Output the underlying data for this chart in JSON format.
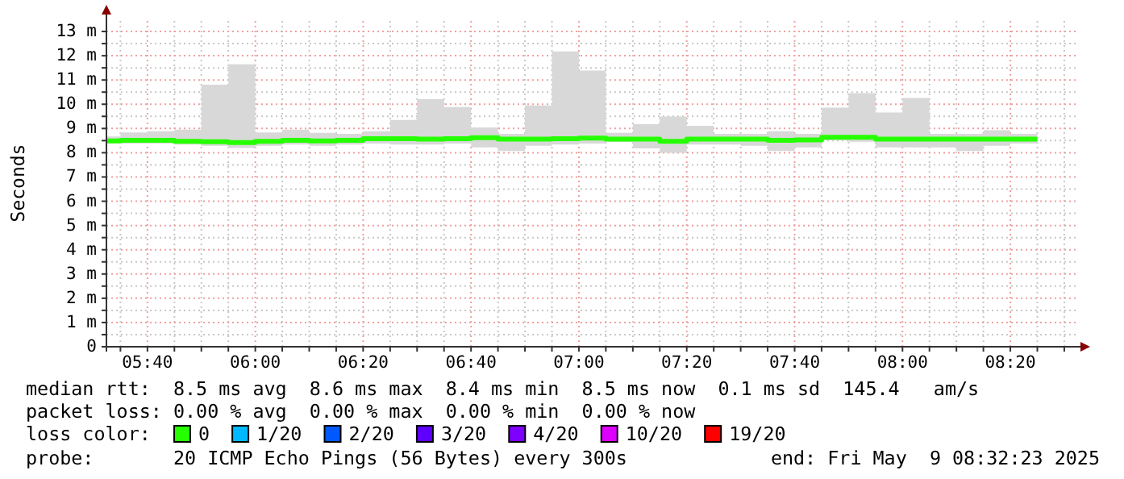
{
  "chart_data": {
    "type": "step",
    "ylabel": "Seconds",
    "legend_title": "loss color:",
    "legend": "bottom",
    "grid": true,
    "xlim": [
      5.54,
      8.54
    ],
    "ylim": [
      0,
      13.5
    ],
    "xticks": [
      {
        "value": 5.5833,
        "label": null
      },
      {
        "value": 5.6667,
        "label": "05:40"
      },
      {
        "value": 5.75,
        "label": null
      },
      {
        "value": 5.8333,
        "label": null
      },
      {
        "value": 5.9167,
        "label": null
      },
      {
        "value": 6,
        "label": "06:00"
      },
      {
        "value": 6.0833,
        "label": null
      },
      {
        "value": 6.1667,
        "label": null
      },
      {
        "value": 6.25,
        "label": null
      },
      {
        "value": 6.3333,
        "label": "06:20"
      },
      {
        "value": 6.4167,
        "label": null
      },
      {
        "value": 6.5,
        "label": null
      },
      {
        "value": 6.5833,
        "label": null
      },
      {
        "value": 6.6667,
        "label": "06:40"
      },
      {
        "value": 6.75,
        "label": null
      },
      {
        "value": 6.8333,
        "label": null
      },
      {
        "value": 6.9167,
        "label": null
      },
      {
        "value": 7,
        "label": "07:00"
      },
      {
        "value": 7.0833,
        "label": null
      },
      {
        "value": 7.1667,
        "label": null
      },
      {
        "value": 7.25,
        "label": null
      },
      {
        "value": 7.3333,
        "label": "07:20"
      },
      {
        "value": 7.4167,
        "label": null
      },
      {
        "value": 7.5,
        "label": null
      },
      {
        "value": 7.5833,
        "label": null
      },
      {
        "value": 7.6667,
        "label": "07:40"
      },
      {
        "value": 7.75,
        "label": null
      },
      {
        "value": 7.8333,
        "label": null
      },
      {
        "value": 7.9167,
        "label": null
      },
      {
        "value": 8,
        "label": "08:00"
      },
      {
        "value": 8.0833,
        "label": null
      },
      {
        "value": 8.1667,
        "label": null
      },
      {
        "value": 8.25,
        "label": null
      },
      {
        "value": 8.3333,
        "label": "08:20"
      },
      {
        "value": 8.4167,
        "label": null
      },
      {
        "value": 8.5,
        "label": null
      }
    ],
    "yticks": [
      {
        "value": 0,
        "label": "0"
      },
      {
        "value": 0.5,
        "label": null
      },
      {
        "value": 1,
        "label": "1 m"
      },
      {
        "value": 1.5,
        "label": null
      },
      {
        "value": 2,
        "label": "2 m"
      },
      {
        "value": 2.5,
        "label": null
      },
      {
        "value": 3,
        "label": "3 m"
      },
      {
        "value": 3.5,
        "label": null
      },
      {
        "value": 4,
        "label": "4 m"
      },
      {
        "value": 4.5,
        "label": null
      },
      {
        "value": 5,
        "label": "5 m"
      },
      {
        "value": 5.5,
        "label": null
      },
      {
        "value": 6,
        "label": "6 m"
      },
      {
        "value": 6.5,
        "label": null
      },
      {
        "value": 7,
        "label": "7 m"
      },
      {
        "value": 7.5,
        "label": null
      },
      {
        "value": 8,
        "label": "8 m"
      },
      {
        "value": 8.5,
        "label": null
      },
      {
        "value": 9,
        "label": "9 m"
      },
      {
        "value": 9.5,
        "label": null
      },
      {
        "value": 10,
        "label": "10 m"
      },
      {
        "value": 10.5,
        "label": null
      },
      {
        "value": 11,
        "label": "11 m"
      },
      {
        "value": 11.5,
        "label": null
      },
      {
        "value": 12,
        "label": "12 m"
      },
      {
        "value": 12.5,
        "label": null
      },
      {
        "value": 13,
        "label": "13 m"
      }
    ],
    "x": [
      5.54,
      5.5833,
      5.6667,
      5.75,
      5.8333,
      5.9167,
      6,
      6.0833,
      6.1667,
      6.25,
      6.3333,
      6.4167,
      6.5,
      6.5833,
      6.6667,
      6.75,
      6.8333,
      6.9167,
      7,
      7.0833,
      7.1667,
      7.25,
      7.3333,
      7.4167,
      7.5,
      7.5833,
      7.6667,
      7.75,
      7.8333,
      7.9167,
      8,
      8.0833,
      8.1667,
      8.25,
      8.3333,
      8.4167
    ],
    "series": [
      {
        "name": "0",
        "color": "#26ff00",
        "values": [
          8.49,
          8.51,
          8.51,
          8.47,
          8.45,
          8.42,
          8.47,
          8.51,
          8.49,
          8.51,
          8.58,
          8.58,
          8.56,
          8.58,
          8.62,
          8.56,
          8.56,
          8.58,
          8.6,
          8.56,
          8.56,
          8.47,
          8.56,
          8.56,
          8.56,
          8.51,
          8.53,
          8.64,
          8.64,
          8.56,
          8.56,
          8.56,
          8.56,
          8.56,
          8.56,
          8.56
        ],
        "lower": [
          8.38,
          8.38,
          8.38,
          8.34,
          8.29,
          8.2,
          8.29,
          8.34,
          8.29,
          8.34,
          8.38,
          8.34,
          8.34,
          8.38,
          8.22,
          8.07,
          8.29,
          8.34,
          8.38,
          8.45,
          8.18,
          8.0,
          8.34,
          8.34,
          8.29,
          8.07,
          8.22,
          8.51,
          8.45,
          8.22,
          8.22,
          8.22,
          8.07,
          8.29,
          8.38,
          8.38
        ],
        "upper": [
          8.67,
          8.84,
          8.89,
          8.95,
          10.81,
          11.65,
          8.84,
          8.95,
          8.82,
          8.78,
          8.89,
          9.35,
          10.21,
          9.88,
          9.04,
          8.78,
          9.95,
          12.18,
          11.39,
          8.82,
          9.18,
          9.49,
          9.11,
          8.78,
          8.78,
          8.89,
          8.78,
          9.86,
          10.46,
          9.66,
          10.26,
          8.78,
          8.78,
          8.93,
          8.78,
          8.78
        ]
      },
      {
        "name": "1/20",
        "color": "#00b8ff",
        "values": [
          null,
          null,
          null,
          null,
          null,
          null,
          null,
          null,
          null,
          null,
          null,
          null,
          null,
          null,
          null,
          null,
          null,
          null,
          null,
          null,
          null,
          null,
          null,
          null,
          null,
          null,
          null,
          null,
          null,
          null,
          null,
          null,
          null,
          null,
          null,
          null
        ]
      },
      {
        "name": "2/20",
        "color": "#0059ff",
        "values": [
          null,
          null,
          null,
          null,
          null,
          null,
          null,
          null,
          null,
          null,
          null,
          null,
          null,
          null,
          null,
          null,
          null,
          null,
          null,
          null,
          null,
          null,
          null,
          null,
          null,
          null,
          null,
          null,
          null,
          null,
          null,
          null,
          null,
          null,
          null,
          null
        ]
      },
      {
        "name": "3/20",
        "color": "#5e00ff",
        "values": [
          null,
          null,
          null,
          null,
          null,
          null,
          null,
          null,
          null,
          null,
          null,
          null,
          null,
          null,
          null,
          null,
          null,
          null,
          null,
          null,
          null,
          null,
          null,
          null,
          null,
          null,
          null,
          null,
          null,
          null,
          null,
          null,
          null,
          null,
          null,
          null
        ]
      },
      {
        "name": "4/20",
        "color": "#7e00ff",
        "values": [
          null,
          null,
          null,
          null,
          null,
          null,
          null,
          null,
          null,
          null,
          null,
          null,
          null,
          null,
          null,
          null,
          null,
          null,
          null,
          null,
          null,
          null,
          null,
          null,
          null,
          null,
          null,
          null,
          null,
          null,
          null,
          null,
          null,
          null,
          null,
          null
        ]
      },
      {
        "name": "10/20",
        "color": "#dd00ff",
        "values": [
          null,
          null,
          null,
          null,
          null,
          null,
          null,
          null,
          null,
          null,
          null,
          null,
          null,
          null,
          null,
          null,
          null,
          null,
          null,
          null,
          null,
          null,
          null,
          null,
          null,
          null,
          null,
          null,
          null,
          null,
          null,
          null,
          null,
          null,
          null,
          null
        ]
      },
      {
        "name": "19/20",
        "color": "#ff0000",
        "values": [
          null,
          null,
          null,
          null,
          null,
          null,
          null,
          null,
          null,
          null,
          null,
          null,
          null,
          null,
          null,
          null,
          null,
          null,
          null,
          null,
          null,
          null,
          null,
          null,
          null,
          null,
          null,
          null,
          null,
          null,
          null,
          null,
          null,
          null,
          null,
          null
        ]
      }
    ],
    "annotations": [
      "median rtt:  8.5 ms avg  8.6 ms max  8.4 ms min  8.5 ms now  0.1 ms sd  145.4   am/s",
      "packet loss: 0.00 % avg  0.00 % max  0.00 % min  0.00 % now",
      "probe:       20 ICMP Echo Pings (56 Bytes) every 300s",
      "end: Fri May  9 08:32:23 2025"
    ]
  }
}
